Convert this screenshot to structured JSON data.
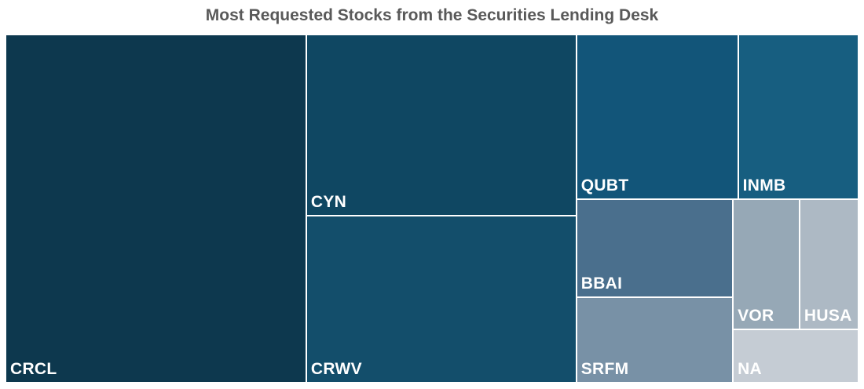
{
  "chart_data": {
    "type": "treemap",
    "title": "Most Requested Stocks from the Securities Lending Desk",
    "items": [
      {
        "label": "CRCL",
        "value": 157,
        "color": "#0d384e"
      },
      {
        "label": "CYN",
        "value": 73.5,
        "color": "#0f4762"
      },
      {
        "label": "CRWV",
        "value": 67.5,
        "color": "#134e6b"
      },
      {
        "label": "QUBT",
        "value": 40,
        "color": "#125579"
      },
      {
        "label": "INMB",
        "value": 29.8,
        "color": "#175e80"
      },
      {
        "label": "BBAI",
        "value": 23,
        "color": "#4a6f8d"
      },
      {
        "label": "SRFM",
        "value": 20,
        "color": "#7891a6"
      },
      {
        "label": "VOR",
        "value": 13,
        "color": "#96a8b6"
      },
      {
        "label": "HUSA",
        "value": 11.5,
        "color": "#adb9c4"
      },
      {
        "label": "NA",
        "value": 10,
        "color": "#c5ccd4"
      }
    ]
  }
}
